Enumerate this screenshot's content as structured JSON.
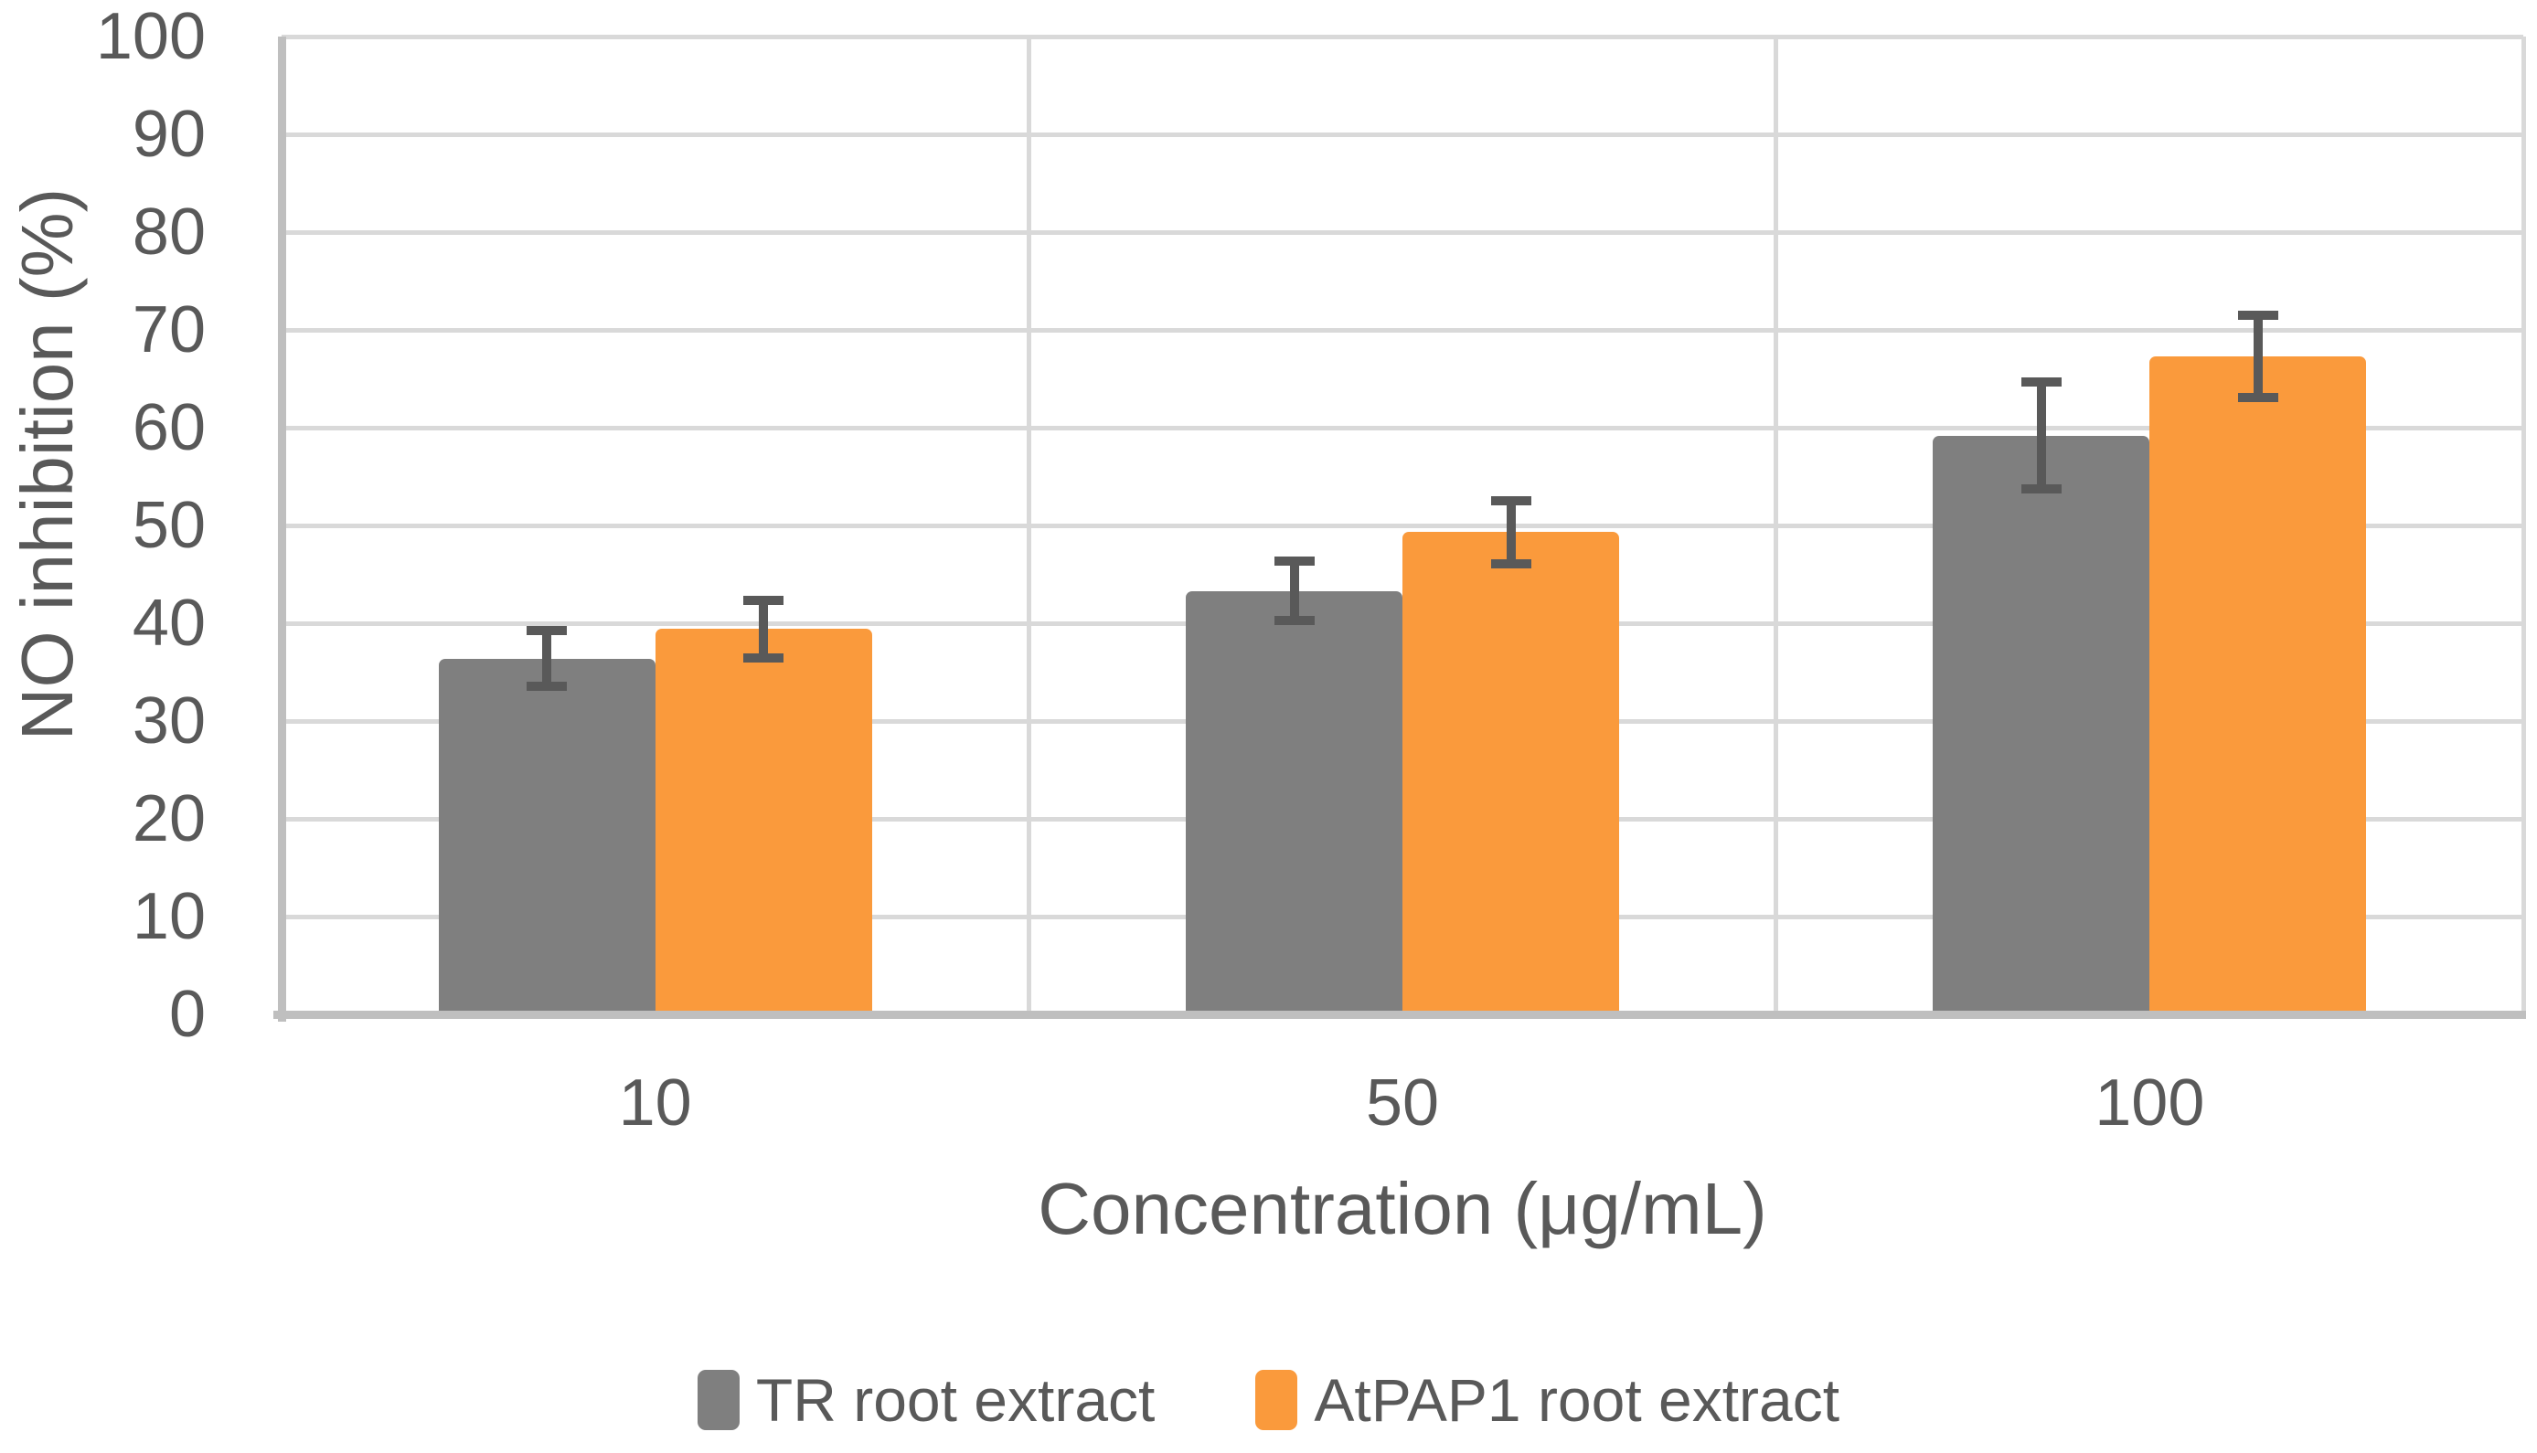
{
  "chart_data": {
    "type": "bar",
    "title": "",
    "categories": [
      "10",
      "50",
      "100"
    ],
    "series": [
      {
        "name": "TR root extract",
        "color": "#7F7F7F",
        "values": [
          36.4,
          43.3,
          59.2
        ],
        "errors": [
          3.3,
          3.5,
          5.9
        ]
      },
      {
        "name": "AtPAP1 root extract",
        "color": "#FA9A3C",
        "values": [
          39.4,
          49.3,
          67.3
        ],
        "errors": [
          3.4,
          3.7,
          4.7
        ]
      }
    ],
    "xlabel": "Concentration (μg/mL)",
    "ylabel": "NO inhibition (%)",
    "ylim": [
      0,
      100
    ],
    "yticks": [
      0,
      10,
      20,
      30,
      40,
      50,
      60,
      70,
      80,
      90,
      100
    ],
    "grid": true,
    "error_bars": true,
    "legend_position": "bottom",
    "colors": {
      "gridline": "#D9D9D9",
      "axis_line": "#BFBFBF",
      "error_bar": "#595959",
      "text": "#595959",
      "background": "#FFFFFF"
    }
  }
}
